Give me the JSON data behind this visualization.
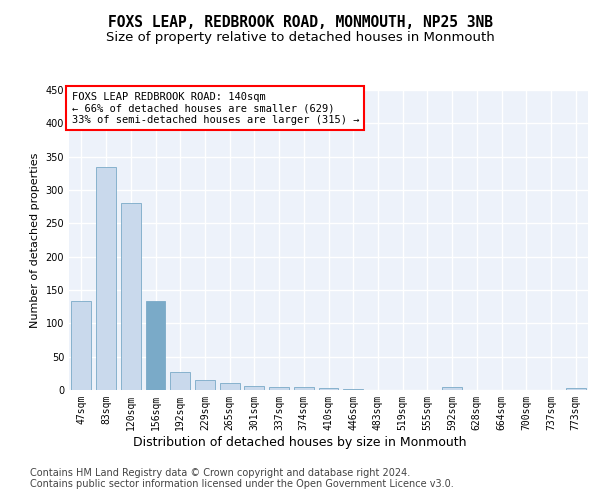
{
  "title_line1": "FOXS LEAP, REDBROOK ROAD, MONMOUTH, NP25 3NB",
  "title_line2": "Size of property relative to detached houses in Monmouth",
  "xlabel": "Distribution of detached houses by size in Monmouth",
  "ylabel": "Number of detached properties",
  "bar_color": "#c9d9ec",
  "bar_edge_color": "#7aaac8",
  "highlight_bar_index": 3,
  "highlight_bar_color": "#7aaac8",
  "background_color": "#edf2fa",
  "grid_color": "#ffffff",
  "categories": [
    "47sqm",
    "83sqm",
    "120sqm",
    "156sqm",
    "192sqm",
    "229sqm",
    "265sqm",
    "301sqm",
    "337sqm",
    "374sqm",
    "410sqm",
    "446sqm",
    "483sqm",
    "519sqm",
    "555sqm",
    "592sqm",
    "628sqm",
    "664sqm",
    "700sqm",
    "737sqm",
    "773sqm"
  ],
  "values": [
    134,
    335,
    281,
    134,
    27,
    15,
    11,
    6,
    5,
    4,
    3,
    1,
    0,
    0,
    0,
    5,
    0,
    0,
    0,
    0,
    3
  ],
  "ylim": [
    0,
    450
  ],
  "yticks": [
    0,
    50,
    100,
    150,
    200,
    250,
    300,
    350,
    400,
    450
  ],
  "annotation_text": "FOXS LEAP REDBROOK ROAD: 140sqm\n← 66% of detached houses are smaller (629)\n33% of semi-detached houses are larger (315) →",
  "footer_text": "Contains HM Land Registry data © Crown copyright and database right 2024.\nContains public sector information licensed under the Open Government Licence v3.0.",
  "footnote_fontsize": 7,
  "title_fontsize1": 10.5,
  "title_fontsize2": 9.5,
  "xlabel_fontsize": 9,
  "ylabel_fontsize": 8,
  "tick_fontsize": 7,
  "annotation_fontsize": 7.5
}
